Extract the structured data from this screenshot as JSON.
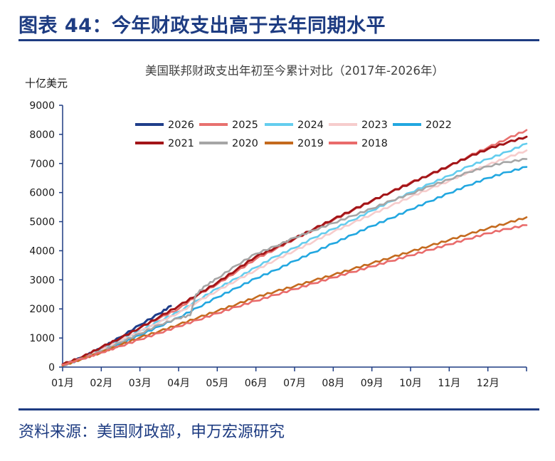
{
  "figure": {
    "heading": "图表 44：今年财政支出高于去年同期水平",
    "source": "资料来源：美国财政部，申万宏源研究"
  },
  "colors": {
    "heading": "#1e3c82",
    "axis": "#1e3c82",
    "title": "#404040"
  },
  "chart_data": {
    "type": "line",
    "title": "美国联邦财政支出年初至今累计对比（2017年-2026年）",
    "ylabel": "十亿美元",
    "xlabel": "",
    "ylim": [
      0,
      9000
    ],
    "yticks": [
      0,
      1000,
      2000,
      3000,
      4000,
      5000,
      6000,
      7000,
      8000,
      9000
    ],
    "x_tick_labels": [
      "01月",
      "02月",
      "03月",
      "04月",
      "05月",
      "06月",
      "07月",
      "08月",
      "09月",
      "10月",
      "11月",
      "12月"
    ],
    "x_unit": "month (1 = start of Jan, 13 = end of Dec)",
    "xlim": [
      1,
      13
    ],
    "grid": false,
    "legend": "top-left inside plot, 2 rows",
    "series": [
      {
        "name": "2026",
        "color": "#1f3e8a",
        "width": 3,
        "points": [
          [
            1.0,
            50
          ],
          [
            1.5,
            330
          ],
          [
            2.0,
            650
          ],
          [
            2.5,
            1030
          ],
          [
            3.0,
            1450
          ],
          [
            3.5,
            1840
          ],
          [
            3.8,
            2100
          ]
        ]
      },
      {
        "name": "2025",
        "color": "#e8716f",
        "width": 2.6,
        "points": [
          [
            1.0,
            60
          ],
          [
            1.5,
            320
          ],
          [
            2.0,
            650
          ],
          [
            2.5,
            980
          ],
          [
            3.0,
            1350
          ],
          [
            3.5,
            1680
          ],
          [
            4.0,
            2000
          ],
          [
            4.5,
            2480
          ],
          [
            5.0,
            2850
          ],
          [
            5.5,
            3280
          ],
          [
            6.0,
            3720
          ],
          [
            6.5,
            4050
          ],
          [
            7.0,
            4400
          ],
          [
            7.5,
            4720
          ],
          [
            8.0,
            5050
          ],
          [
            8.5,
            5380
          ],
          [
            9.0,
            5700
          ],
          [
            9.5,
            6030
          ],
          [
            10.0,
            6350
          ],
          [
            10.5,
            6600
          ],
          [
            11.0,
            6900
          ],
          [
            11.5,
            7250
          ],
          [
            12.0,
            7550
          ],
          [
            12.5,
            7850
          ],
          [
            13.0,
            8150
          ]
        ]
      },
      {
        "name": "2024",
        "color": "#64cdee",
        "width": 2.6,
        "points": [
          [
            1.0,
            50
          ],
          [
            1.5,
            300
          ],
          [
            2.0,
            600
          ],
          [
            2.5,
            920
          ],
          [
            3.0,
            1250
          ],
          [
            3.5,
            1580
          ],
          [
            4.0,
            1900
          ],
          [
            4.5,
            2300
          ],
          [
            5.0,
            2700
          ],
          [
            5.5,
            3050
          ],
          [
            6.0,
            3430
          ],
          [
            6.5,
            3800
          ],
          [
            7.0,
            4100
          ],
          [
            7.5,
            4450
          ],
          [
            8.0,
            4750
          ],
          [
            8.5,
            5050
          ],
          [
            9.0,
            5380
          ],
          [
            9.5,
            5700
          ],
          [
            10.0,
            6000
          ],
          [
            10.5,
            6300
          ],
          [
            11.0,
            6580
          ],
          [
            11.5,
            6900
          ],
          [
            12.0,
            7150
          ],
          [
            12.5,
            7400
          ],
          [
            13.0,
            7680
          ]
        ]
      },
      {
        "name": "2023",
        "color": "#f6cccc",
        "width": 2.6,
        "points": [
          [
            1.0,
            50
          ],
          [
            1.5,
            290
          ],
          [
            2.0,
            570
          ],
          [
            2.5,
            900
          ],
          [
            3.0,
            1230
          ],
          [
            3.5,
            1540
          ],
          [
            4.0,
            1860
          ],
          [
            4.5,
            2250
          ],
          [
            5.0,
            2620
          ],
          [
            5.5,
            2980
          ],
          [
            6.0,
            3330
          ],
          [
            6.5,
            3680
          ],
          [
            7.0,
            4000
          ],
          [
            7.5,
            4320
          ],
          [
            8.0,
            4650
          ],
          [
            8.5,
            4950
          ],
          [
            9.0,
            5250
          ],
          [
            9.5,
            5550
          ],
          [
            10.0,
            5850
          ],
          [
            10.5,
            6130
          ],
          [
            11.0,
            6400
          ],
          [
            11.5,
            6700
          ],
          [
            12.0,
            6950
          ],
          [
            12.5,
            7200
          ],
          [
            13.0,
            7450
          ]
        ]
      },
      {
        "name": "2022",
        "color": "#22a7e0",
        "width": 2.6,
        "points": [
          [
            1.0,
            50
          ],
          [
            1.5,
            280
          ],
          [
            2.0,
            520
          ],
          [
            2.5,
            800
          ],
          [
            3.0,
            1100
          ],
          [
            3.5,
            1400
          ],
          [
            4.0,
            1700
          ],
          [
            4.5,
            2050
          ],
          [
            5.0,
            2400
          ],
          [
            5.5,
            2720
          ],
          [
            6.0,
            3050
          ],
          [
            6.5,
            3330
          ],
          [
            7.0,
            3650
          ],
          [
            7.5,
            3950
          ],
          [
            8.0,
            4250
          ],
          [
            8.5,
            4550
          ],
          [
            9.0,
            4850
          ],
          [
            9.5,
            5120
          ],
          [
            10.0,
            5420
          ],
          [
            10.5,
            5700
          ],
          [
            11.0,
            5980
          ],
          [
            11.5,
            6250
          ],
          [
            12.0,
            6500
          ],
          [
            12.5,
            6700
          ],
          [
            13.0,
            6880
          ]
        ]
      },
      {
        "name": "2021",
        "color": "#a31518",
        "width": 3,
        "points": [
          [
            1.0,
            90
          ],
          [
            1.5,
            340
          ],
          [
            2.0,
            680
          ],
          [
            2.5,
            1000
          ],
          [
            3.0,
            1350
          ],
          [
            3.5,
            1720
          ],
          [
            4.0,
            2100
          ],
          [
            4.5,
            2500
          ],
          [
            5.0,
            2900
          ],
          [
            5.5,
            3350
          ],
          [
            6.0,
            3800
          ],
          [
            6.5,
            4100
          ],
          [
            7.0,
            4420
          ],
          [
            7.5,
            4750
          ],
          [
            8.0,
            5080
          ],
          [
            8.5,
            5400
          ],
          [
            9.0,
            5720
          ],
          [
            9.5,
            6020
          ],
          [
            10.0,
            6320
          ],
          [
            10.5,
            6620
          ],
          [
            11.0,
            6920
          ],
          [
            11.5,
            7220
          ],
          [
            12.0,
            7500
          ],
          [
            12.5,
            7720
          ],
          [
            13.0,
            7920
          ]
        ]
      },
      {
        "name": "2020",
        "color": "#a6a6a6",
        "width": 2.6,
        "points": [
          [
            1.0,
            50
          ],
          [
            1.5,
            300
          ],
          [
            2.0,
            550
          ],
          [
            2.5,
            850
          ],
          [
            3.0,
            1150
          ],
          [
            3.5,
            1450
          ],
          [
            4.0,
            1680
          ],
          [
            4.3,
            1780
          ],
          [
            4.45,
            2500
          ],
          [
            4.7,
            2800
          ],
          [
            5.0,
            3050
          ],
          [
            5.5,
            3500
          ],
          [
            6.0,
            3900
          ],
          [
            6.5,
            4150
          ],
          [
            7.0,
            4450
          ],
          [
            7.5,
            4700
          ],
          [
            8.0,
            4950
          ],
          [
            8.5,
            5200
          ],
          [
            9.0,
            5450
          ],
          [
            9.5,
            5720
          ],
          [
            10.0,
            5950
          ],
          [
            10.5,
            6220
          ],
          [
            11.0,
            6450
          ],
          [
            11.5,
            6700
          ],
          [
            12.0,
            6900
          ],
          [
            12.5,
            7050
          ],
          [
            13.0,
            7150
          ]
        ]
      },
      {
        "name": "2019",
        "color": "#c46a1e",
        "width": 2.6,
        "points": [
          [
            1.0,
            50
          ],
          [
            1.5,
            280
          ],
          [
            2.0,
            500
          ],
          [
            2.5,
            760
          ],
          [
            3.0,
            1020
          ],
          [
            3.5,
            1230
          ],
          [
            4.0,
            1460
          ],
          [
            4.5,
            1700
          ],
          [
            5.0,
            1930
          ],
          [
            5.5,
            2160
          ],
          [
            6.0,
            2400
          ],
          [
            6.5,
            2600
          ],
          [
            7.0,
            2780
          ],
          [
            7.5,
            2980
          ],
          [
            8.0,
            3170
          ],
          [
            8.5,
            3370
          ],
          [
            9.0,
            3570
          ],
          [
            9.5,
            3770
          ],
          [
            10.0,
            3970
          ],
          [
            10.5,
            4170
          ],
          [
            11.0,
            4370
          ],
          [
            11.5,
            4570
          ],
          [
            12.0,
            4770
          ],
          [
            12.5,
            4950
          ],
          [
            13.0,
            5150
          ]
        ]
      },
      {
        "name": "2018",
        "color": "#e96b6b",
        "width": 2.6,
        "points": [
          [
            1.0,
            80
          ],
          [
            1.5,
            280
          ],
          [
            2.0,
            500
          ],
          [
            2.5,
            720
          ],
          [
            3.0,
            950
          ],
          [
            3.5,
            1170
          ],
          [
            4.0,
            1400
          ],
          [
            4.5,
            1620
          ],
          [
            5.0,
            1850
          ],
          [
            5.5,
            2070
          ],
          [
            6.0,
            2280
          ],
          [
            6.5,
            2480
          ],
          [
            7.0,
            2680
          ],
          [
            7.5,
            2880
          ],
          [
            8.0,
            3080
          ],
          [
            8.5,
            3270
          ],
          [
            9.0,
            3460
          ],
          [
            9.5,
            3650
          ],
          [
            10.0,
            3840
          ],
          [
            10.5,
            4030
          ],
          [
            11.0,
            4220
          ],
          [
            11.5,
            4410
          ],
          [
            12.0,
            4600
          ],
          [
            12.5,
            4750
          ],
          [
            13.0,
            4880
          ]
        ]
      }
    ]
  }
}
